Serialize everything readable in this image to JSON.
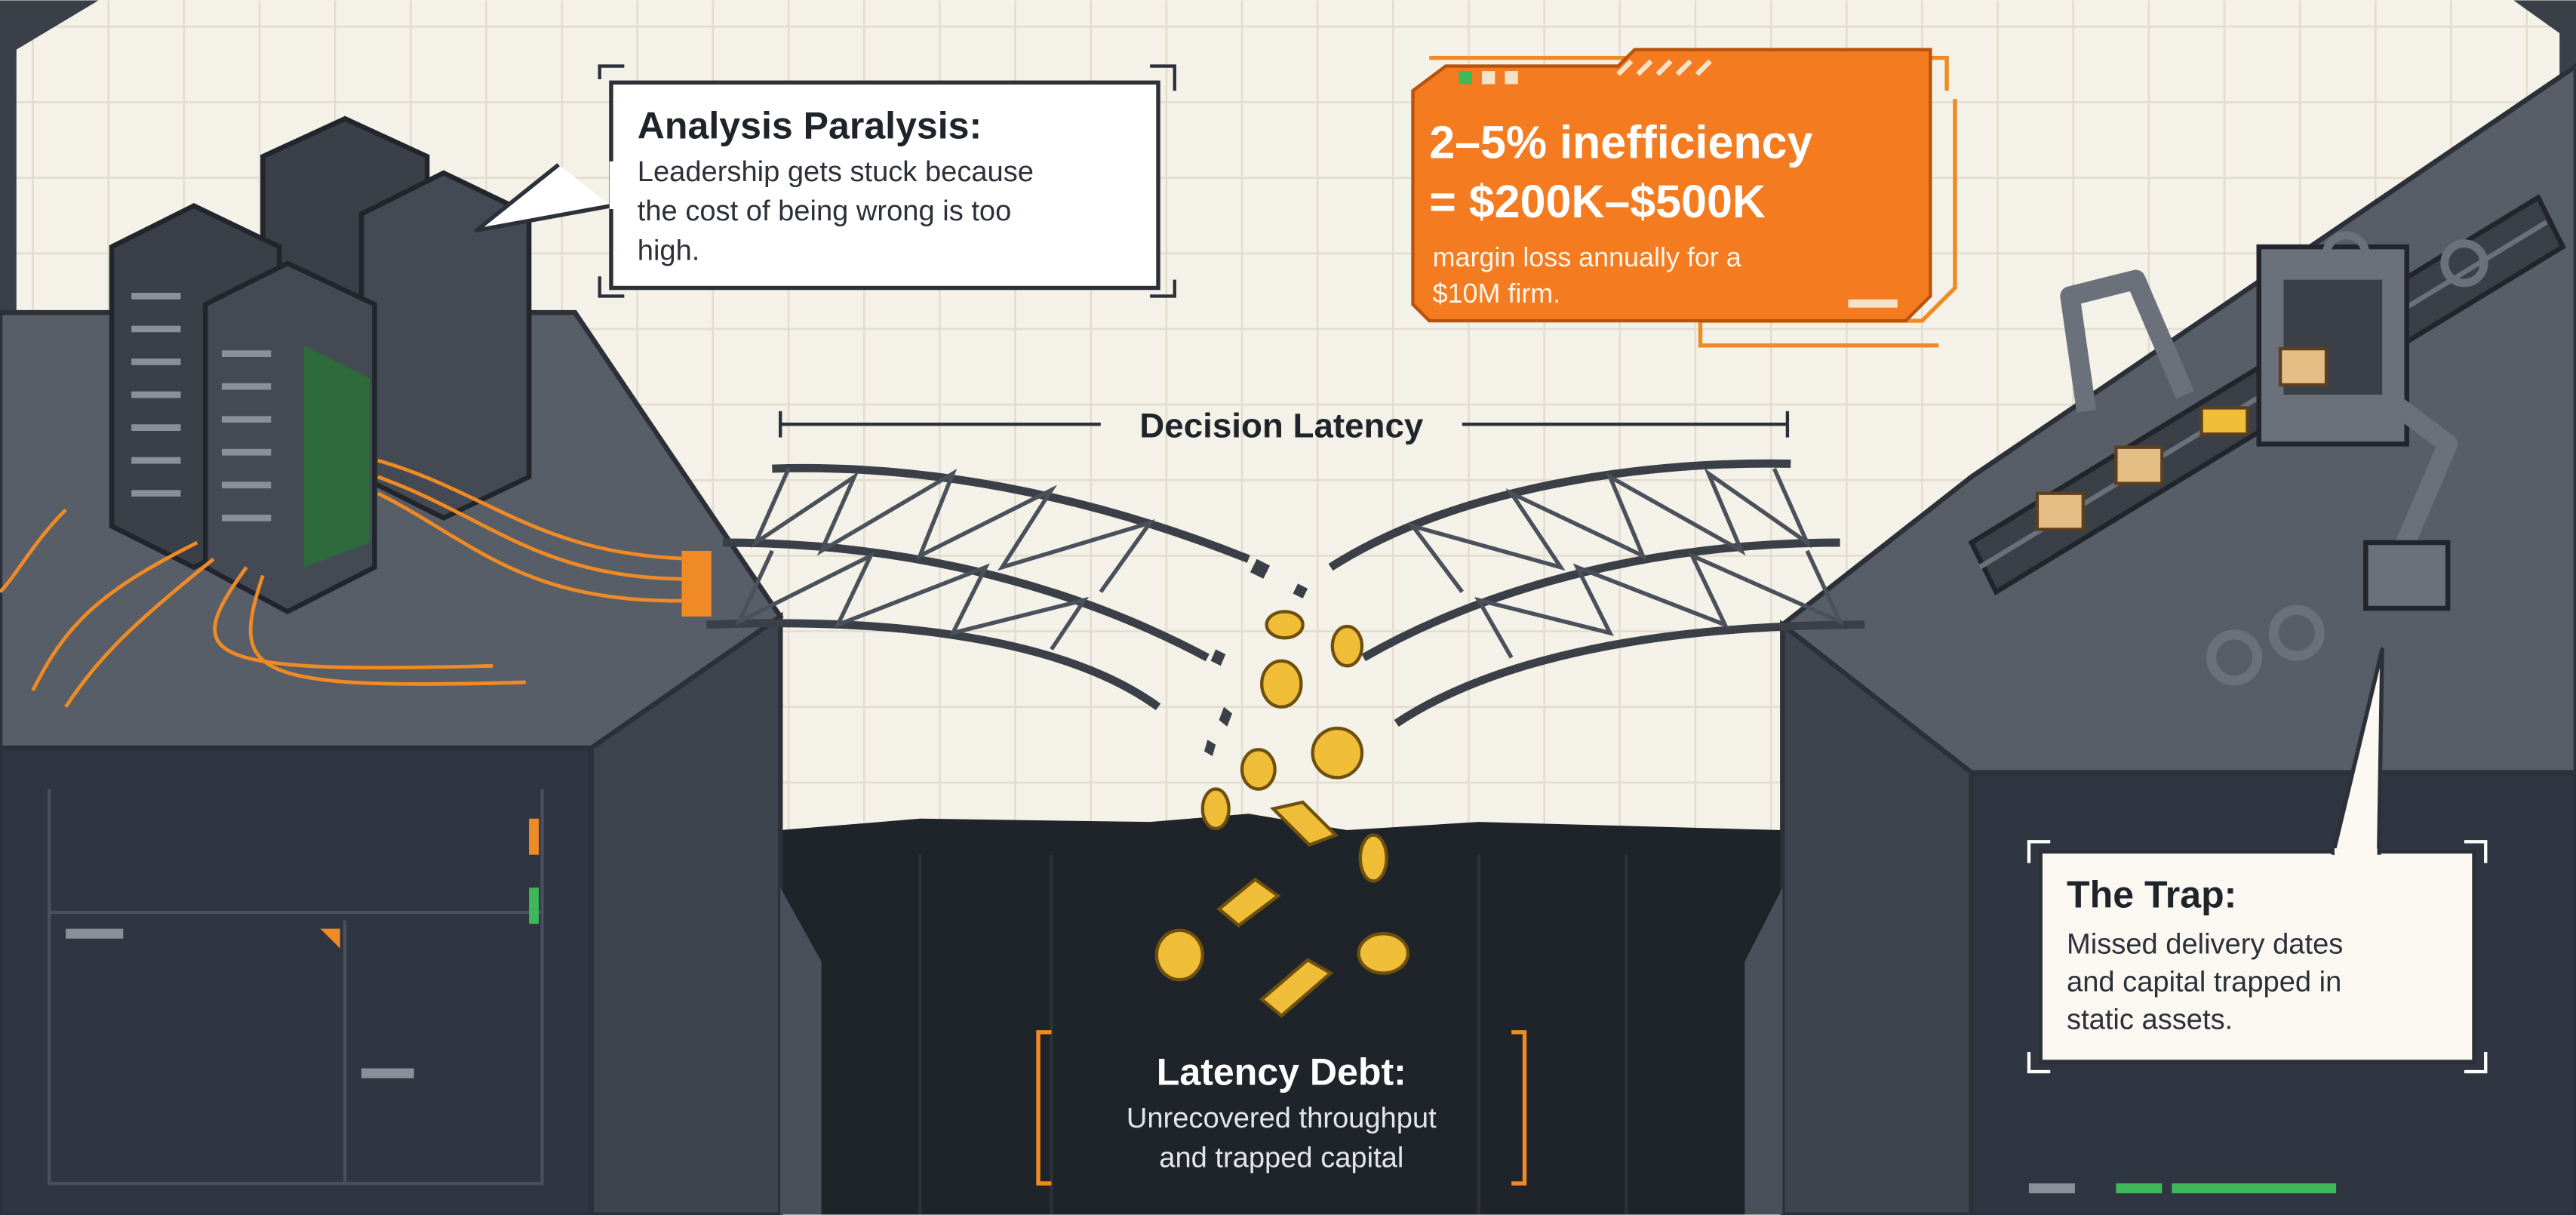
{
  "decision_latency": "Decision Latency",
  "analysis_paralysis": {
    "title": "Analysis Paralysis:",
    "body": [
      "Leadership gets stuck because",
      "the cost of being wrong is too",
      "high."
    ]
  },
  "inefficiency": {
    "headline": [
      "2–5% inefficiency",
      "= $200K–$500K"
    ],
    "body": [
      "margin loss annually for a",
      "$10M firm."
    ]
  },
  "latency_debt": {
    "title": "Latency Debt:",
    "body": [
      "Unrecovered throughput",
      "and trapped capital"
    ]
  },
  "trap": {
    "title": "The Trap:",
    "body": [
      "Missed delivery dates",
      "and capital trapped in",
      "static assets."
    ]
  }
}
